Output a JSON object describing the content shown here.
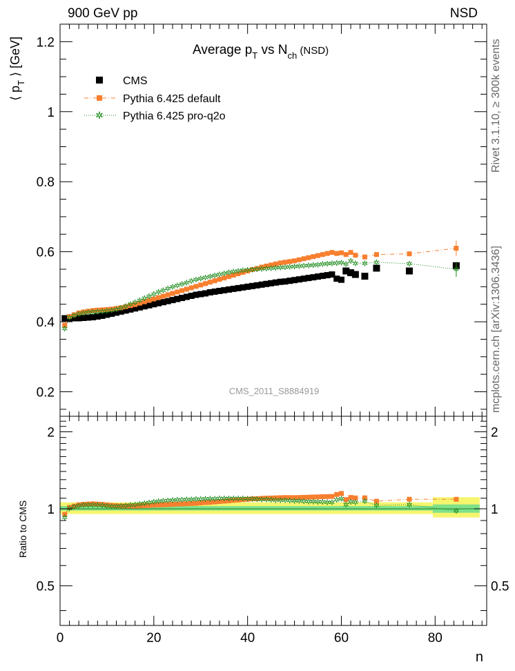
{
  "header": {
    "left": "900 GeV pp",
    "right": "NSD"
  },
  "side_labels": {
    "top": "Rivet 3.1.10, ≥ 300k events",
    "bottom": "mcplots.cern.ch [arXiv:1306.3436]"
  },
  "chart_data": [
    {
      "type": "scatter",
      "title": "Average p_T vs N_ch (NSD)",
      "title_parts": {
        "a": "Average p",
        "a_sub": "T",
        "b": " vs N",
        "b_sub": "ch",
        "c": " (NSD)"
      },
      "xlabel": "n",
      "ylabel": "⟨ p_T ⟩ [GeV]",
      "ylabel_parts": {
        "pre": "⟨ p",
        "sub": "T",
        "post": " ⟩ [GeV]"
      },
      "watermark": "CMS_2011_S8884919",
      "xlim": [
        0,
        91
      ],
      "ylim": [
        0.13,
        1.25
      ],
      "x_ticks": [
        "0",
        "20",
        "40",
        "60",
        "80"
      ],
      "y_ticks": [
        "0.2",
        "0.4",
        "0.6",
        "0.8",
        "1",
        "1.2"
      ],
      "legend_position": "top-left",
      "colors": {
        "cms": "#000000",
        "default": "#f77f2f",
        "proq2o": "#1b8a1b"
      },
      "series": [
        {
          "name": "CMS",
          "x": [
            1,
            2,
            3,
            4,
            5,
            6,
            7,
            8,
            9,
            10,
            11,
            12,
            13,
            14,
            15,
            16,
            17,
            18,
            19,
            20,
            21,
            22,
            23,
            24,
            25,
            26,
            27,
            28,
            29,
            30,
            31,
            32,
            33,
            34,
            35,
            36,
            37,
            38,
            39,
            40,
            41,
            42,
            43,
            44,
            45,
            46,
            47,
            48,
            49,
            50,
            51,
            52,
            53,
            54,
            55,
            56,
            57,
            58,
            59,
            60,
            61,
            62,
            63,
            65,
            67.5,
            74.5,
            84.5
          ],
          "y": [
            0.41,
            0.41,
            0.41,
            0.41,
            0.411,
            0.412,
            0.413,
            0.415,
            0.417,
            0.42,
            0.423,
            0.426,
            0.429,
            0.432,
            0.435,
            0.438,
            0.441,
            0.444,
            0.447,
            0.45,
            0.453,
            0.456,
            0.459,
            0.462,
            0.465,
            0.468,
            0.471,
            0.474,
            0.477,
            0.479,
            0.481,
            0.484,
            0.486,
            0.488,
            0.49,
            0.492,
            0.494,
            0.496,
            0.498,
            0.5,
            0.502,
            0.504,
            0.506,
            0.508,
            0.51,
            0.512,
            0.514,
            0.515,
            0.517,
            0.519,
            0.521,
            0.523,
            0.525,
            0.527,
            0.529,
            0.531,
            0.533,
            0.535,
            0.523,
            0.52,
            0.545,
            0.54,
            0.535,
            0.53,
            0.553,
            0.545,
            0.56
          ]
        },
        {
          "name": "Pythia 6.425 default",
          "x": [
            1,
            2,
            3,
            4,
            5,
            6,
            7,
            8,
            9,
            10,
            11,
            12,
            13,
            14,
            15,
            16,
            17,
            18,
            19,
            20,
            21,
            22,
            23,
            24,
            25,
            26,
            27,
            28,
            29,
            30,
            31,
            32,
            33,
            34,
            35,
            36,
            37,
            38,
            39,
            40,
            41,
            42,
            43,
            44,
            45,
            46,
            47,
            48,
            49,
            50,
            51,
            52,
            53,
            54,
            55,
            56,
            57,
            58,
            59,
            60,
            61,
            62,
            63,
            65,
            67.5,
            74.5,
            84.5
          ],
          "y": [
            0.39,
            0.415,
            0.42,
            0.425,
            0.428,
            0.43,
            0.432,
            0.433,
            0.434,
            0.435,
            0.436,
            0.438,
            0.44,
            0.443,
            0.446,
            0.449,
            0.453,
            0.457,
            0.461,
            0.465,
            0.469,
            0.473,
            0.477,
            0.481,
            0.485,
            0.489,
            0.493,
            0.497,
            0.501,
            0.505,
            0.509,
            0.513,
            0.517,
            0.521,
            0.525,
            0.529,
            0.533,
            0.537,
            0.541,
            0.545,
            0.549,
            0.552,
            0.556,
            0.559,
            0.562,
            0.565,
            0.568,
            0.57,
            0.572,
            0.574,
            0.577,
            0.58,
            0.583,
            0.586,
            0.589,
            0.592,
            0.595,
            0.598,
            0.595,
            0.597,
            0.592,
            0.598,
            0.59,
            0.585,
            0.592,
            0.594,
            0.61
          ]
        },
        {
          "name": "Pythia 6.425 pro-q2o",
          "x": [
            1,
            2,
            3,
            4,
            5,
            6,
            7,
            8,
            9,
            10,
            11,
            12,
            13,
            14,
            15,
            16,
            17,
            18,
            19,
            20,
            21,
            22,
            23,
            24,
            25,
            26,
            27,
            28,
            29,
            30,
            31,
            32,
            33,
            34,
            35,
            36,
            37,
            38,
            39,
            40,
            41,
            42,
            43,
            44,
            45,
            46,
            47,
            48,
            49,
            50,
            51,
            52,
            53,
            54,
            55,
            56,
            57,
            58,
            59,
            60,
            61,
            62,
            63,
            65,
            67.5,
            74.5,
            84.5
          ],
          "y": [
            0.38,
            0.412,
            0.418,
            0.422,
            0.425,
            0.427,
            0.428,
            0.429,
            0.43,
            0.431,
            0.433,
            0.436,
            0.44,
            0.445,
            0.45,
            0.455,
            0.461,
            0.467,
            0.473,
            0.479,
            0.485,
            0.49,
            0.495,
            0.5,
            0.504,
            0.508,
            0.512,
            0.516,
            0.52,
            0.523,
            0.526,
            0.529,
            0.532,
            0.535,
            0.538,
            0.541,
            0.543,
            0.545,
            0.547,
            0.548,
            0.549,
            0.55,
            0.551,
            0.552,
            0.553,
            0.554,
            0.555,
            0.556,
            0.557,
            0.558,
            0.559,
            0.56,
            0.561,
            0.562,
            0.563,
            0.565,
            0.566,
            0.567,
            0.568,
            0.569,
            0.565,
            0.574,
            0.567,
            0.567,
            0.57,
            0.566,
            0.55
          ]
        }
      ]
    },
    {
      "type": "scatter",
      "ylabel": "Ratio to CMS",
      "xlim": [
        0,
        91
      ],
      "ylim": [
        0.35,
        2.3
      ],
      "log_y": true,
      "y_ticks": [
        "0.5",
        "1",
        "2"
      ],
      "band_colors": {
        "outer": "#f5f56e",
        "inner": "#7fe08a"
      },
      "series": [
        {
          "name": "Pythia 6.425 default",
          "ref": "default"
        },
        {
          "name": "Pythia 6.425 pro-q2o",
          "ref": "proq2o"
        }
      ]
    }
  ]
}
